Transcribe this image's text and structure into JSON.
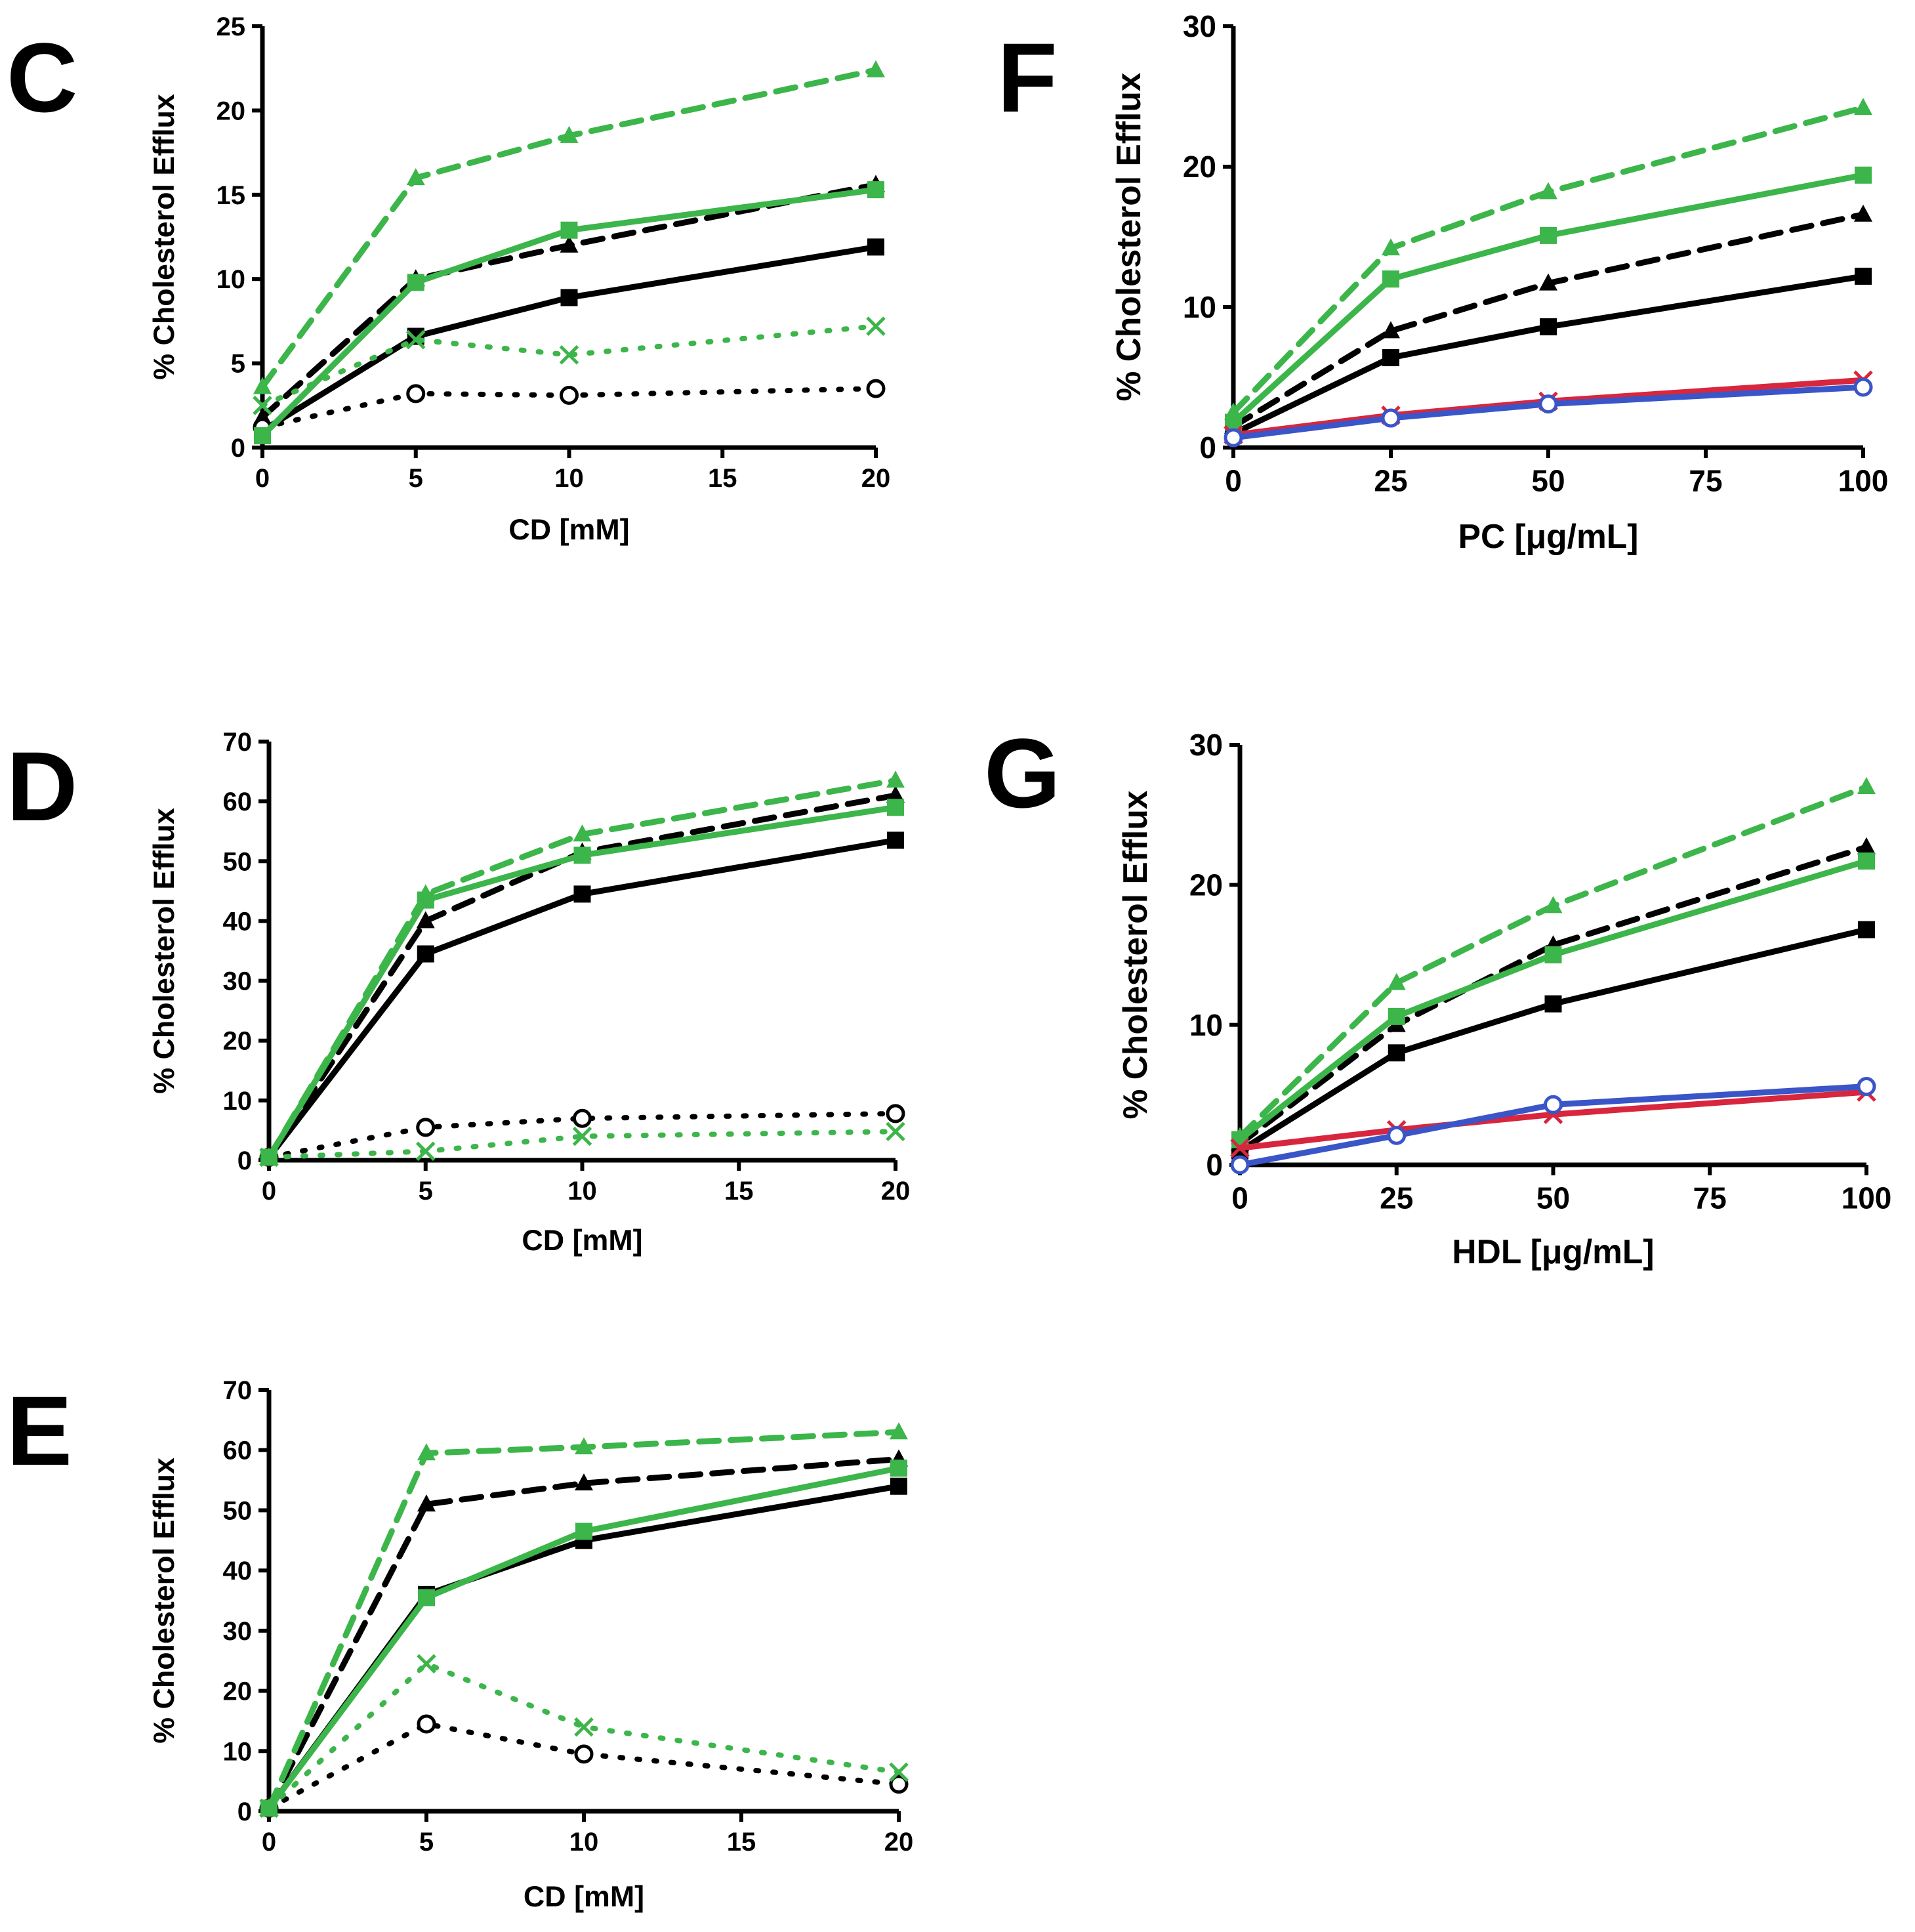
{
  "colors": {
    "black": "#000000",
    "green": "#3cb54a",
    "red": "#d7263d",
    "blue": "#3a55c8"
  },
  "chart_data": [
    {
      "panel": "C",
      "type": "line",
      "xlabel": "CD [mM]",
      "ylabel": "% Cholesterol Efflux",
      "xlim": [
        0,
        20
      ],
      "ylim": [
        0,
        25
      ],
      "xticks": [
        0,
        5,
        10,
        15,
        20
      ],
      "yticks": [
        0,
        5,
        10,
        15,
        20,
        25
      ],
      "series": [
        {
          "name": "black solid squares",
          "color": "black",
          "style": "solid",
          "marker": "square",
          "x": [
            0,
            5,
            10,
            20
          ],
          "y": [
            1.0,
            6.6,
            8.9,
            11.9
          ]
        },
        {
          "name": "black dashed triangles",
          "color": "black",
          "style": "dashed",
          "marker": "triangle",
          "x": [
            0,
            5,
            10,
            20
          ],
          "y": [
            1.8,
            10.0,
            12.0,
            15.6
          ]
        },
        {
          "name": "black dotted circles",
          "color": "black",
          "style": "dotted",
          "marker": "circle",
          "x": [
            0,
            5,
            10,
            20
          ],
          "y": [
            1.2,
            3.2,
            3.1,
            3.5
          ]
        },
        {
          "name": "green solid squares",
          "color": "green",
          "style": "solid",
          "marker": "square",
          "x": [
            0,
            5,
            10,
            20
          ],
          "y": [
            0.7,
            9.8,
            12.9,
            15.3
          ]
        },
        {
          "name": "green dashed triangles",
          "color": "green",
          "style": "dashed",
          "marker": "triangle",
          "x": [
            0,
            5,
            10,
            20
          ],
          "y": [
            3.6,
            16.0,
            18.5,
            22.4
          ]
        },
        {
          "name": "green dotted crosses",
          "color": "green",
          "style": "dotted",
          "marker": "cross",
          "x": [
            0,
            5,
            10,
            20
          ],
          "y": [
            2.5,
            6.4,
            5.5,
            7.2
          ]
        }
      ]
    },
    {
      "panel": "D",
      "type": "line",
      "xlabel": "CD [mM]",
      "ylabel": "% Cholesterol Efflux",
      "xlim": [
        0,
        20
      ],
      "ylim": [
        0,
        70
      ],
      "xticks": [
        0,
        5,
        10,
        15,
        20
      ],
      "yticks": [
        0,
        10,
        20,
        30,
        40,
        50,
        60,
        70
      ],
      "series": [
        {
          "name": "black solid squares",
          "color": "black",
          "style": "solid",
          "marker": "square",
          "x": [
            0,
            5,
            10,
            20
          ],
          "y": [
            0.5,
            34.5,
            44.5,
            53.5
          ]
        },
        {
          "name": "black dashed triangles",
          "color": "black",
          "style": "dashed",
          "marker": "triangle",
          "x": [
            0,
            5,
            10,
            20
          ],
          "y": [
            0.5,
            40.0,
            51.5,
            61.0
          ]
        },
        {
          "name": "black dotted circles",
          "color": "black",
          "style": "dotted",
          "marker": "circle",
          "x": [
            0,
            5,
            10,
            20
          ],
          "y": [
            0.5,
            5.5,
            7.0,
            7.8
          ]
        },
        {
          "name": "green solid squares",
          "color": "green",
          "style": "solid",
          "marker": "square",
          "x": [
            0,
            5,
            10,
            20
          ],
          "y": [
            0.5,
            43.5,
            51.0,
            59.0
          ]
        },
        {
          "name": "green dashed triangles",
          "color": "green",
          "style": "dashed",
          "marker": "triangle",
          "x": [
            0,
            5,
            10,
            20
          ],
          "y": [
            0.5,
            44.5,
            54.5,
            63.5
          ]
        },
        {
          "name": "green dotted crosses",
          "color": "green",
          "style": "dotted",
          "marker": "cross",
          "x": [
            0,
            5,
            10,
            20
          ],
          "y": [
            0.5,
            1.5,
            4.0,
            4.8
          ]
        }
      ]
    },
    {
      "panel": "E",
      "type": "line",
      "xlabel": "CD [mM]",
      "ylabel": "% Cholesterol Efflux",
      "xlim": [
        0,
        20
      ],
      "ylim": [
        0,
        70
      ],
      "xticks": [
        0,
        5,
        10,
        15,
        20
      ],
      "yticks": [
        0,
        10,
        20,
        30,
        40,
        50,
        60,
        70
      ],
      "series": [
        {
          "name": "black solid squares",
          "color": "black",
          "style": "solid",
          "marker": "square",
          "x": [
            0,
            5,
            10,
            20
          ],
          "y": [
            0.5,
            36.0,
            45.0,
            54.0
          ]
        },
        {
          "name": "black dashed triangles",
          "color": "black",
          "style": "dashed",
          "marker": "triangle",
          "x": [
            0,
            5,
            10,
            20
          ],
          "y": [
            0.5,
            51.0,
            54.5,
            58.5
          ]
        },
        {
          "name": "black dotted circles",
          "color": "black",
          "style": "dotted",
          "marker": "circle",
          "x": [
            0,
            5,
            10,
            20
          ],
          "y": [
            0.5,
            14.5,
            9.5,
            4.5
          ]
        },
        {
          "name": "green solid squares",
          "color": "green",
          "style": "solid",
          "marker": "square",
          "x": [
            0,
            5,
            10,
            20
          ],
          "y": [
            0.5,
            35.5,
            46.5,
            57.0
          ]
        },
        {
          "name": "green dashed triangles",
          "color": "green",
          "style": "dashed",
          "marker": "triangle",
          "x": [
            0,
            5,
            10,
            20
          ],
          "y": [
            0.5,
            59.5,
            60.5,
            63.0
          ]
        },
        {
          "name": "green dotted crosses",
          "color": "green",
          "style": "dotted",
          "marker": "cross",
          "x": [
            0,
            5,
            10,
            20
          ],
          "y": [
            0.5,
            24.5,
            14.0,
            6.5
          ]
        }
      ]
    },
    {
      "panel": "F",
      "type": "line",
      "xlabel": "PC [μg/mL]",
      "ylabel": "% Cholesterol Efflux",
      "xlim": [
        0,
        100
      ],
      "ylim": [
        0,
        30
      ],
      "xticks": [
        0,
        25,
        50,
        75,
        100
      ],
      "yticks": [
        0,
        10,
        20,
        30
      ],
      "series": [
        {
          "name": "black solid squares",
          "color": "black",
          "style": "solid",
          "marker": "square",
          "x": [
            0,
            25,
            50,
            100
          ],
          "y": [
            1.0,
            6.4,
            8.6,
            12.2
          ]
        },
        {
          "name": "black dashed triangles",
          "color": "black",
          "style": "dashed",
          "marker": "triangle",
          "x": [
            0,
            25,
            50,
            100
          ],
          "y": [
            1.5,
            8.3,
            11.7,
            16.6
          ]
        },
        {
          "name": "green solid squares",
          "color": "green",
          "style": "solid",
          "marker": "square",
          "x": [
            0,
            25,
            50,
            100
          ],
          "y": [
            1.8,
            12.0,
            15.1,
            19.4
          ]
        },
        {
          "name": "green dashed triangles",
          "color": "green",
          "style": "dashed",
          "marker": "triangle",
          "x": [
            0,
            25,
            50,
            100
          ],
          "y": [
            2.5,
            14.2,
            18.2,
            24.2
          ]
        },
        {
          "name": "red crosses",
          "color": "red",
          "style": "solid",
          "marker": "cross",
          "x": [
            0,
            25,
            50,
            100
          ],
          "y": [
            0.9,
            2.3,
            3.3,
            4.8
          ]
        },
        {
          "name": "blue circles",
          "color": "blue",
          "style": "solid",
          "marker": "circle",
          "x": [
            0,
            25,
            50,
            100
          ],
          "y": [
            0.7,
            2.1,
            3.1,
            4.3
          ]
        }
      ]
    },
    {
      "panel": "G",
      "type": "line",
      "xlabel": "HDL [μg/mL]",
      "ylabel": "% Cholesterol Efflux",
      "xlim": [
        0,
        100
      ],
      "ylim": [
        0,
        30
      ],
      "xticks": [
        0,
        25,
        50,
        75,
        100
      ],
      "yticks": [
        0,
        10,
        20,
        30
      ],
      "series": [
        {
          "name": "black solid squares",
          "color": "black",
          "style": "solid",
          "marker": "square",
          "x": [
            0,
            25,
            50,
            100
          ],
          "y": [
            1.0,
            8.0,
            11.5,
            16.8
          ]
        },
        {
          "name": "black dashed triangles",
          "color": "black",
          "style": "dashed",
          "marker": "triangle",
          "x": [
            0,
            25,
            50,
            100
          ],
          "y": [
            1.5,
            10.0,
            15.7,
            22.7
          ]
        },
        {
          "name": "green solid squares",
          "color": "green",
          "style": "solid",
          "marker": "square",
          "x": [
            0,
            25,
            50,
            100
          ],
          "y": [
            1.8,
            10.6,
            15.0,
            21.7
          ]
        },
        {
          "name": "green dashed triangles",
          "color": "green",
          "style": "dashed",
          "marker": "triangle",
          "x": [
            0,
            25,
            50,
            100
          ],
          "y": [
            2.0,
            13.0,
            18.5,
            27.0
          ]
        },
        {
          "name": "red crosses",
          "color": "red",
          "style": "solid",
          "marker": "cross",
          "x": [
            0,
            25,
            50,
            100
          ],
          "y": [
            1.2,
            2.5,
            3.6,
            5.2
          ]
        },
        {
          "name": "blue circles",
          "color": "blue",
          "style": "solid",
          "marker": "circle",
          "x": [
            0,
            25,
            50,
            100
          ],
          "y": [
            0.0,
            2.1,
            4.3,
            5.6
          ]
        }
      ]
    }
  ]
}
